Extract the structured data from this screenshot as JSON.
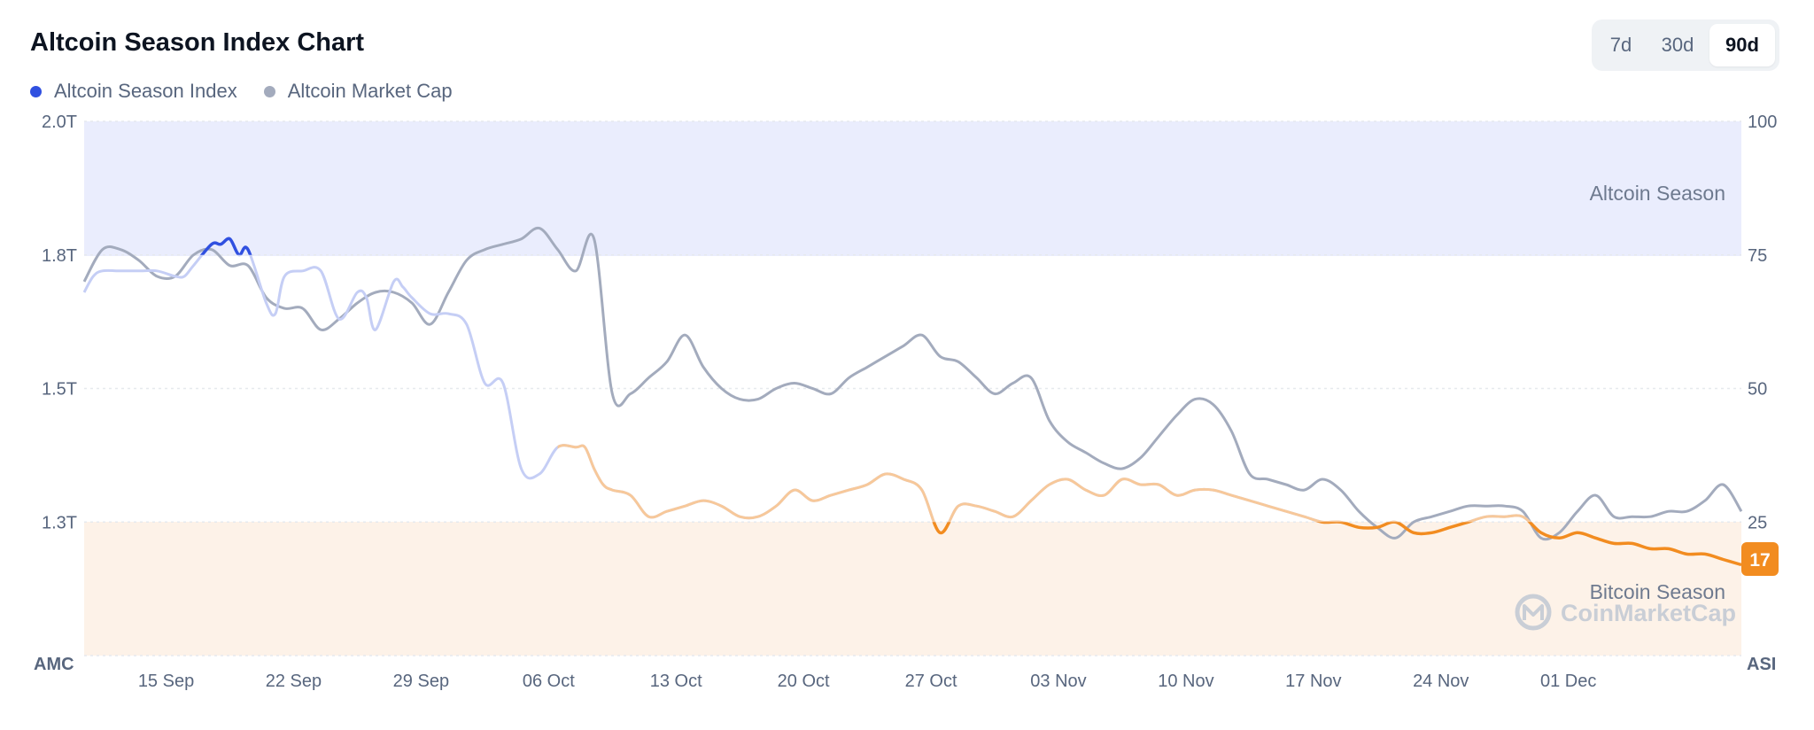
{
  "header": {
    "title": "Altcoin Season Index Chart"
  },
  "legend": [
    {
      "label": "Altcoin Season Index",
      "color": "#3050e0"
    },
    {
      "label": "Altcoin Market Cap",
      "color": "#a3abbd"
    }
  ],
  "range_tabs": [
    {
      "label": "7d",
      "active": false
    },
    {
      "label": "30d",
      "active": false
    },
    {
      "label": "90d",
      "active": true
    }
  ],
  "zones": {
    "altcoin_season_label": "Altcoin Season",
    "bitcoin_season_label": "Bitcoin Season",
    "altcoin_color": "#eaedfd",
    "bitcoin_color": "#fdf2e8"
  },
  "watermark": "CoinMarketCap",
  "current_value_badge": {
    "value": "17",
    "color": "#f28c20"
  },
  "chart_data": {
    "type": "line",
    "x_ticks": [
      "15 Sep",
      "22 Sep",
      "29 Sep",
      "06 Oct",
      "13 Oct",
      "20 Oct",
      "27 Oct",
      "03 Nov",
      "10 Nov",
      "17 Nov",
      "24 Nov",
      "01 Dec"
    ],
    "x_range_days": [
      0,
      91
    ],
    "x_tick_days": [
      4.5,
      11.5,
      18.5,
      25.5,
      32.5,
      39.5,
      46.5,
      53.5,
      60.5,
      67.5,
      74.5,
      81.5
    ],
    "left_axis": {
      "label": "AMC",
      "ticks": [
        "1.3T",
        "1.5T",
        "1.8T",
        "2.0T"
      ]
    },
    "right_axis": {
      "label": "ASI",
      "ticks": [
        "25",
        "50",
        "75",
        "100"
      ],
      "ylim": [
        0,
        100
      ]
    },
    "series": [
      {
        "name": "Altcoin Season Index",
        "axis": "right",
        "x": [
          0,
          0.5,
          1,
          2,
          3,
          4,
          5,
          5.5,
          6,
          7,
          7.5,
          8,
          8.5,
          9,
          10,
          10.5,
          11,
          12,
          13,
          14,
          15,
          15.5,
          16,
          17,
          17.5,
          18,
          19,
          20,
          21,
          22,
          23,
          24,
          25,
          26,
          27,
          27.5,
          28,
          28.5,
          29,
          30,
          31,
          32,
          33,
          34,
          35,
          36,
          37,
          38,
          39,
          40,
          41,
          42,
          43,
          44,
          45,
          46,
          47,
          48,
          49,
          50,
          51,
          52,
          53,
          54,
          55,
          56,
          57,
          58,
          59,
          60,
          61,
          62,
          63,
          64,
          65,
          66,
          67,
          68,
          69,
          70,
          71,
          72,
          73,
          74,
          75,
          76,
          77,
          78,
          79,
          80,
          81,
          82,
          83,
          84,
          85,
          86,
          87,
          88,
          89,
          90,
          91
        ],
        "values": [
          68,
          71,
          72,
          72,
          72,
          72,
          71,
          71,
          73,
          77,
          77,
          78,
          75,
          76,
          66,
          64,
          71,
          72,
          72,
          63,
          68,
          67,
          61,
          70,
          69,
          67,
          64,
          64,
          62,
          51,
          51,
          35,
          34,
          39,
          39,
          39,
          35,
          32,
          31,
          30,
          26,
          27,
          28,
          29,
          28,
          26,
          26,
          28,
          31,
          29,
          30,
          31,
          32,
          34,
          33,
          31,
          23,
          28,
          28,
          27,
          26,
          29,
          32,
          33,
          31,
          30,
          33,
          32,
          32,
          30,
          31,
          31,
          30,
          29,
          28,
          27,
          26,
          25,
          25,
          24,
          24,
          25,
          23,
          23,
          24,
          25,
          26,
          26,
          26,
          23,
          22,
          23,
          22,
          21,
          21,
          20,
          20,
          19,
          19,
          18,
          17
        ],
        "color_rules": {
          "above_75": "#3050e0",
          "between": "#f7c89a",
          "below_25": "#f28c20"
        }
      },
      {
        "name": "Altcoin Market Cap",
        "axis": "left",
        "x": [
          0,
          1,
          2,
          3,
          4,
          5,
          6,
          7,
          8,
          9,
          10,
          11,
          12,
          13,
          14,
          15,
          16,
          17,
          18,
          19,
          20,
          21,
          22,
          23,
          24,
          25,
          26,
          27,
          28,
          29,
          30,
          31,
          32,
          33,
          34,
          35,
          36,
          37,
          38,
          39,
          40,
          41,
          42,
          43,
          44,
          45,
          46,
          47,
          48,
          49,
          50,
          51,
          52,
          53,
          54,
          55,
          56,
          57,
          58,
          59,
          60,
          61,
          62,
          63,
          64,
          65,
          66,
          67,
          68,
          69,
          70,
          71,
          72,
          73,
          74,
          75,
          76,
          77,
          78,
          79,
          80,
          81,
          82,
          83,
          84,
          85,
          86,
          87,
          88,
          89,
          90,
          91
        ],
        "values_asi_scale": [
          70,
          76,
          76,
          74,
          71,
          71,
          75,
          76,
          73,
          73,
          67,
          65,
          65,
          61,
          63,
          66,
          68,
          68,
          66,
          62,
          68,
          74,
          76,
          77,
          78,
          80,
          76,
          72,
          78,
          49,
          49,
          52,
          55,
          60,
          54,
          50,
          48,
          48,
          50,
          51,
          50,
          49,
          52,
          54,
          56,
          58,
          60,
          56,
          55,
          52,
          49,
          51,
          52,
          44,
          40,
          38,
          36,
          35,
          37,
          41,
          45,
          48,
          47,
          42,
          34,
          33,
          32,
          31,
          33,
          31,
          27,
          24,
          22,
          25,
          26,
          27,
          28,
          28,
          28,
          27,
          22,
          23,
          27,
          30,
          26,
          26,
          26,
          27,
          27,
          29,
          32,
          27
        ]
      }
    ]
  }
}
